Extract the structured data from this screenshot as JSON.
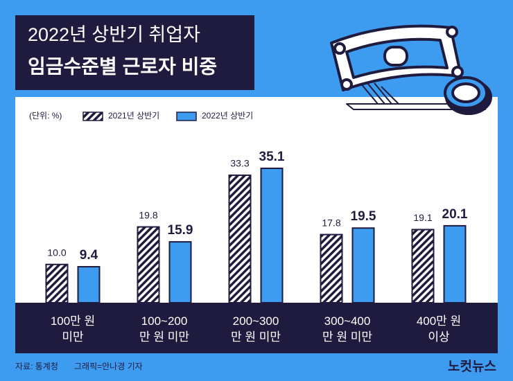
{
  "chart_data": {
    "type": "bar",
    "title": "2022년 상반기 취업자",
    "subtitle": "임금수준별 근로자 비중",
    "unit": "(단위: %)",
    "categories": [
      "100만 원\n미만",
      "100~200\n만 원 미만",
      "200~300\n만 원 미만",
      "300~400\n만 원 미만",
      "400만 원\n이상"
    ],
    "series": [
      {
        "name": "2021년 상반기",
        "color": "#1e1b3f",
        "hatch": true,
        "values": [
          10.0,
          19.8,
          33.3,
          17.8,
          19.1
        ],
        "value_labels": [
          "10.0",
          "19.8",
          "33.3",
          "17.8",
          "19.1"
        ]
      },
      {
        "name": "2022년 상반기",
        "color": "#3d9cf0",
        "hatch": false,
        "values": [
          9.4,
          15.9,
          35.1,
          19.5,
          20.1
        ]
      }
    ],
    "source": "자료: 통계청",
    "credit": "그래픽=안나경 기자",
    "logo": "노컷뉴스"
  }
}
